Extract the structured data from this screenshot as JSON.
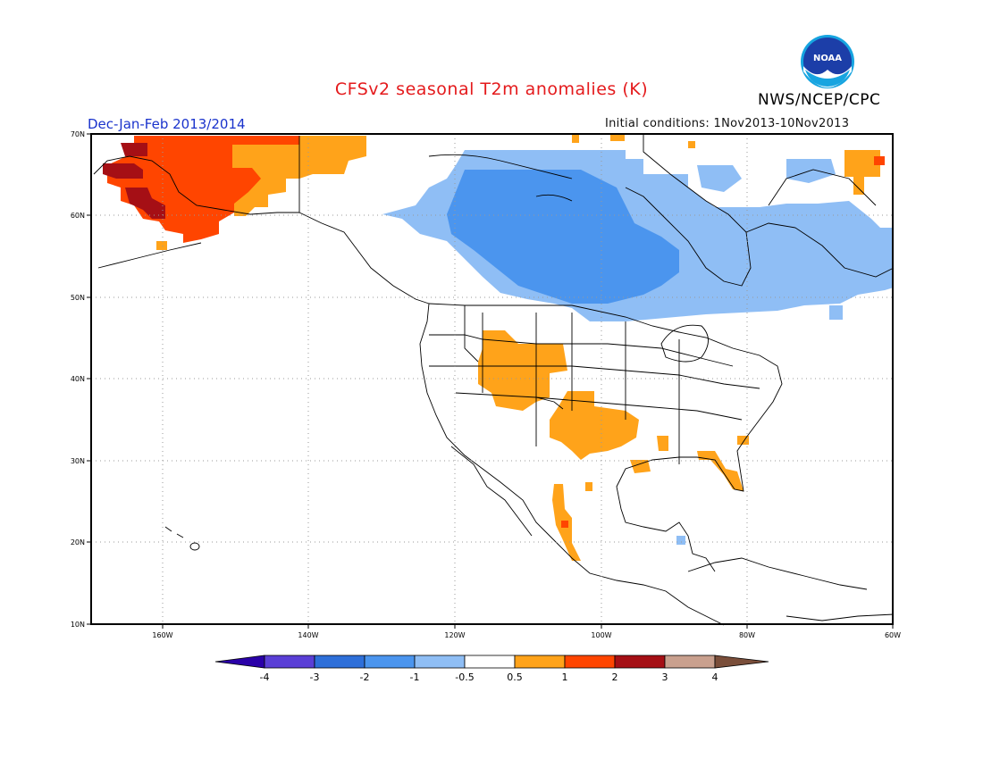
{
  "title": "CFSv2 seasonal T2m anomalies (K)",
  "organization": "NWS/NCEP/CPC",
  "logo_text": "NOAA",
  "season": "Dec-Jan-Feb 2013/2014",
  "initial_conditions": "Initial conditions: 1Nov2013-10Nov2013",
  "map": {
    "lat_ticks": [
      "70N",
      "60N",
      "50N",
      "40N",
      "30N",
      "20N",
      "10N"
    ],
    "lon_ticks": [
      "160W",
      "140W",
      "120W",
      "100W",
      "80W",
      "60W"
    ]
  },
  "colorbar": {
    "labels": [
      "-4",
      "-3",
      "-2",
      "-1",
      "-0.5",
      "0.5",
      "1",
      "2",
      "3",
      "4"
    ],
    "colors": [
      "#2a00a8",
      "#5a3fd6",
      "#2e6fd9",
      "#4b95ee",
      "#8fbef5",
      "#ffffff",
      "#ffa31a",
      "#ff4500",
      "#a50f15",
      "#c9a08e",
      "#7a4e3a"
    ]
  },
  "anomaly_colors": {
    "strong_warm": "#a50f15",
    "warm": "#ff4500",
    "mild_warm": "#ffa31a",
    "mild_cool": "#8fbef5",
    "cool": "#4b95ee"
  }
}
